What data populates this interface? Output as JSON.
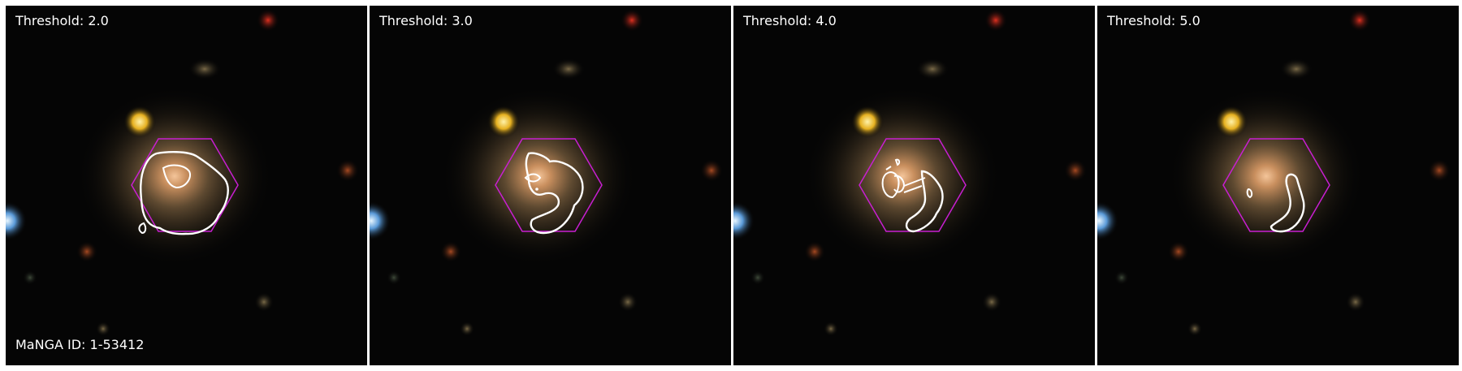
{
  "figure": {
    "manga_id_text": "MaNGA ID: 1-53412",
    "contour_color": "#ffffff",
    "hexagon_color": "#c81fd1",
    "panels": [
      {
        "threshold_text": "Threshold: 2.0"
      },
      {
        "threshold_text": "Threshold: 3.0"
      },
      {
        "threshold_text": "Threshold: 4.0"
      },
      {
        "threshold_text": "Threshold: 5.0"
      }
    ]
  }
}
